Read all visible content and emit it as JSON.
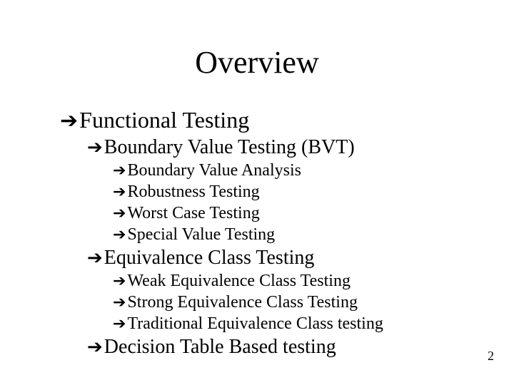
{
  "title": "Overview",
  "page_number": "2",
  "arrow_glyph": "➔",
  "outline": {
    "l1": "Functional Testing",
    "l2a": "Boundary Value Testing (BVT)",
    "l3a1": "Boundary Value Analysis",
    "l3a2": "Robustness Testing",
    "l3a3": "Worst Case Testing",
    "l3a4": "Special Value Testing",
    "l2b": "Equivalence Class Testing",
    "l3b1": "Weak Equivalence Class Testing",
    "l3b2": "Strong Equivalence Class Testing",
    "l3b3": "Traditional Equivalence Class testing",
    "l2c": "Decision Table Based testing"
  }
}
